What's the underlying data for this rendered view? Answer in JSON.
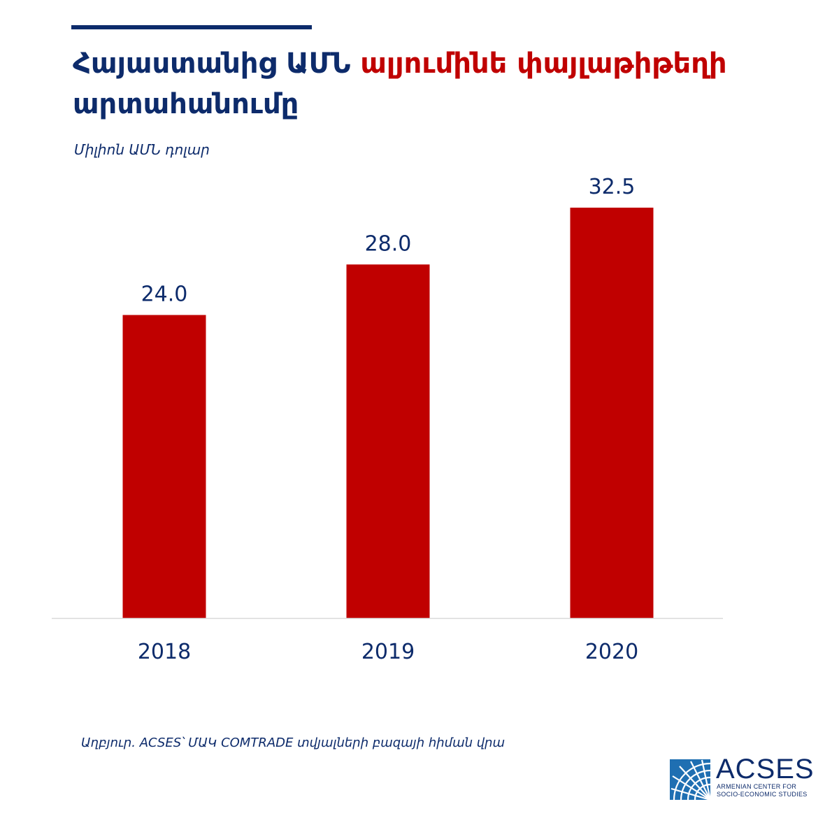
{
  "colors": {
    "navy": "#0d2b6b",
    "red": "#c00000",
    "axis": "#d9d9d9",
    "logo_blue": "#1f6fb2"
  },
  "header": {
    "title_part1": "Հայաստանից ԱՄՆ ",
    "title_part2": "ալյումինե փայլաթիթեղի",
    "title_part3": "արտահանումը",
    "units": "Միլիոն ԱՄՆ դոլար"
  },
  "chart_data": {
    "type": "bar",
    "title": "Հայաստանից ԱՄՆ ալյումինե փայլաթիթեղի արտահանումը",
    "ylabel": "Միլիոն ԱՄՆ դոլար",
    "categories": [
      "2018",
      "2019",
      "2020"
    ],
    "values": [
      24.0,
      28.0,
      32.5
    ],
    "value_labels": [
      "24.0",
      "28.0",
      "32.5"
    ],
    "ylim": [
      0,
      32.5
    ],
    "grid": false,
    "legend": "none"
  },
  "footer": {
    "source": "Աղբյուր. ACSES՝ ՄԱԿ COMTRADE  տվյալների բազայի հիման վրա"
  },
  "logo": {
    "name": "ACSES",
    "tagline_line1": "ARMENIAN CENTER FOR",
    "tagline_line2": "SOCIO-ECONOMIC STUDIES",
    "icon": "acses-dome-logo-icon"
  }
}
